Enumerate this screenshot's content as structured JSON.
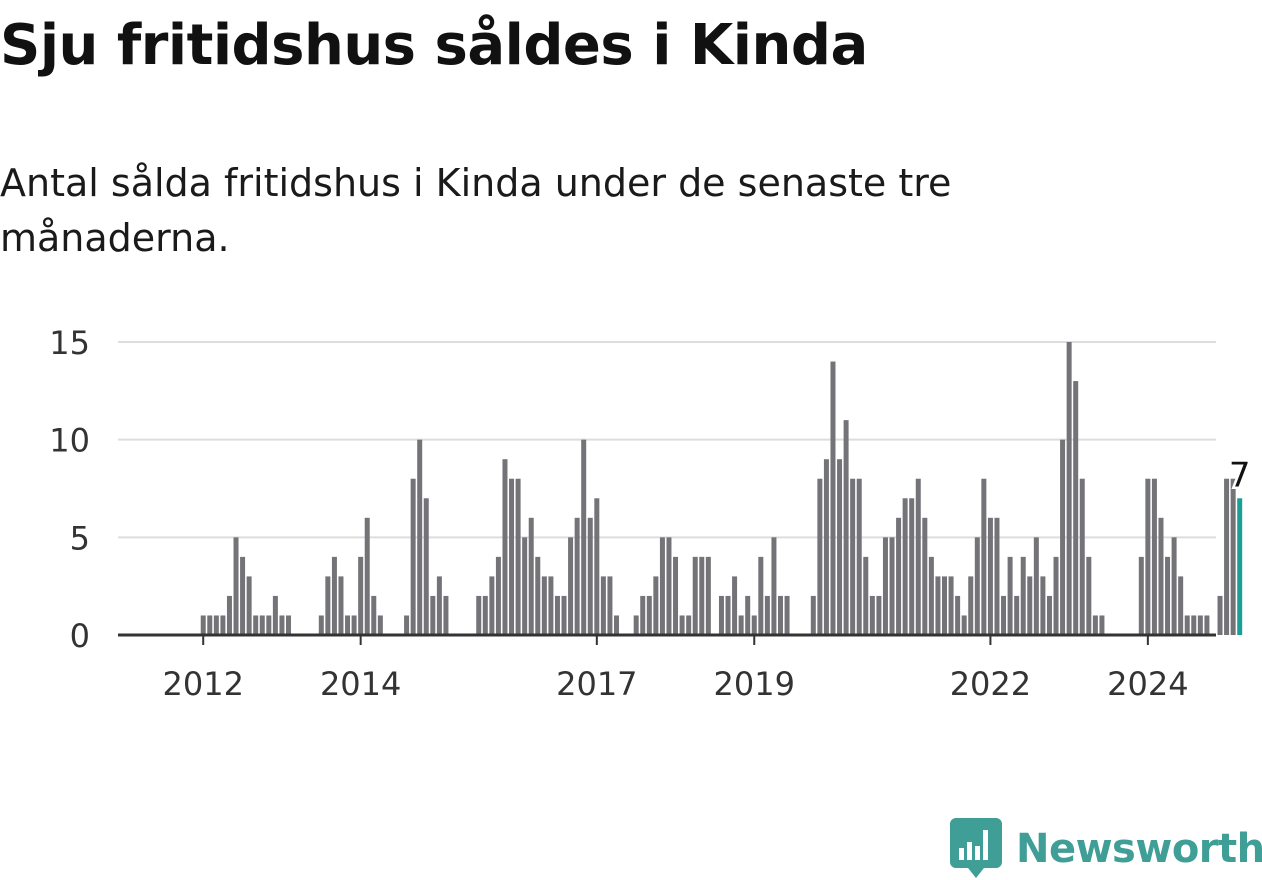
{
  "title": "Sju fritidshus såldes i Kinda",
  "subtitle": "Antal sålda fritidshus i Kinda under de senaste tre månaderna.",
  "brand": {
    "name": "Newsworthy",
    "icon": "newsworthy-logo-icon",
    "color": "#3f9e96"
  },
  "colors": {
    "bar": "#747378",
    "highlight": "#1a9e96",
    "grid": "#dddddd",
    "axis": "#333333",
    "text": "#333333"
  },
  "chart_data": {
    "type": "bar",
    "start_month": "2011-01",
    "values": [
      0,
      0,
      0,
      0,
      0,
      0,
      0,
      0,
      0,
      0,
      0,
      0,
      1,
      1,
      1,
      1,
      2,
      5,
      4,
      3,
      1,
      1,
      1,
      2,
      1,
      1,
      0,
      0,
      0,
      0,
      1,
      3,
      4,
      3,
      1,
      1,
      4,
      6,
      2,
      1,
      0,
      0,
      0,
      1,
      8,
      10,
      7,
      2,
      3,
      2,
      0,
      0,
      0,
      0,
      2,
      2,
      3,
      4,
      9,
      8,
      8,
      5,
      6,
      4,
      3,
      3,
      2,
      2,
      5,
      6,
      10,
      6,
      7,
      3,
      3,
      1,
      0,
      0,
      1,
      2,
      2,
      3,
      5,
      5,
      4,
      1,
      1,
      4,
      4,
      4,
      0,
      2,
      2,
      3,
      1,
      2,
      1,
      4,
      2,
      5,
      2,
      2,
      0,
      0,
      0,
      2,
      8,
      9,
      14,
      9,
      11,
      8,
      8,
      4,
      2,
      2,
      5,
      5,
      6,
      7,
      7,
      8,
      6,
      4,
      3,
      3,
      3,
      2,
      1,
      3,
      5,
      8,
      6,
      6,
      2,
      4,
      2,
      4,
      3,
      5,
      3,
      2,
      4,
      10,
      15,
      13,
      8,
      4,
      1,
      1,
      0,
      0,
      0,
      0,
      0,
      4,
      8,
      8,
      6,
      4,
      5,
      3,
      1,
      1,
      1,
      1,
      0,
      2,
      8,
      8,
      7
    ],
    "highlight_label": "7",
    "yticks": [
      0,
      5,
      10,
      15
    ],
    "ylim": [
      0,
      15
    ],
    "xticks": [
      {
        "label": "2012",
        "date": "2012-01"
      },
      {
        "label": "2014",
        "date": "2014-01"
      },
      {
        "label": "2017",
        "date": "2017-01"
      },
      {
        "label": "2019",
        "date": "2019-01"
      },
      {
        "label": "2022",
        "date": "2022-01"
      },
      {
        "label": "2024",
        "date": "2024-01"
      }
    ],
    "grid": true,
    "xlabel": "",
    "ylabel": ""
  }
}
